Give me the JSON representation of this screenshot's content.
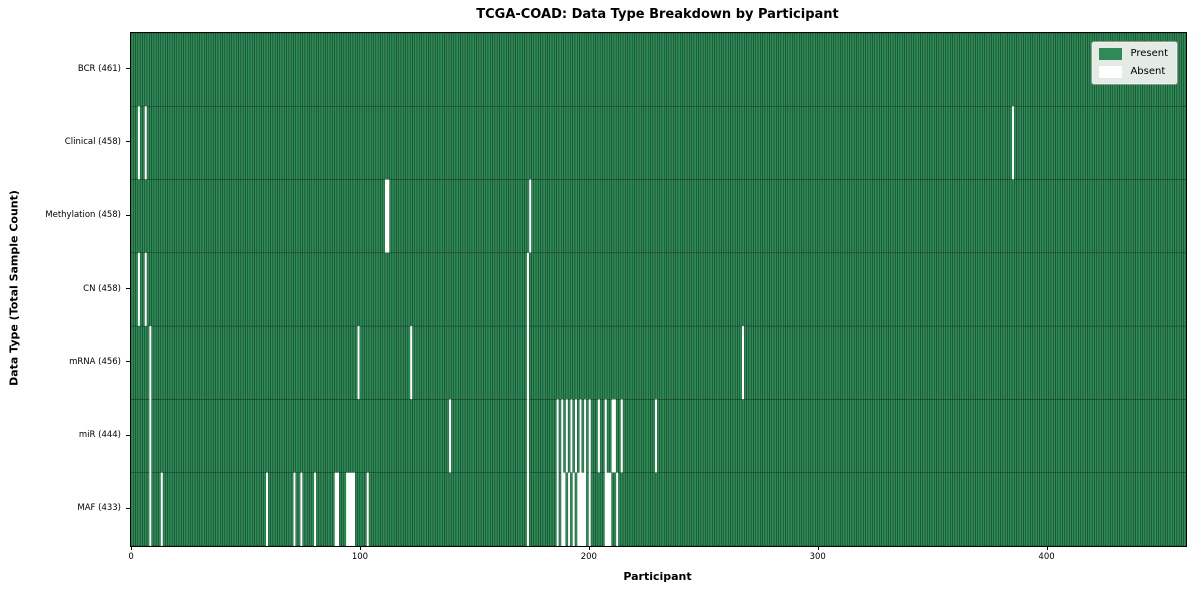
{
  "figure": {
    "title": "TCGA-COAD: Data Type Breakdown by Participant",
    "xlabel": "Participant",
    "ylabel": "Data Type (Total Sample Count)"
  },
  "legend": {
    "items": [
      {
        "label": "Present",
        "color": "#2e8b57"
      },
      {
        "label": "Absent",
        "color": "#ffffff"
      }
    ]
  },
  "chart_data": {
    "type": "heatmap",
    "title": "TCGA-COAD: Data Type Breakdown by Participant",
    "xlabel": "Participant",
    "ylabel": "Data Type (Total Sample Count)",
    "legend_entries": [
      "Present",
      "Absent"
    ],
    "legend_position": "upper right",
    "grid": false,
    "n_participants": 461,
    "xlim": [
      0,
      461
    ],
    "x_ticks": [
      0,
      100,
      200,
      300,
      400
    ],
    "present_color": "#2e8b57",
    "absent_color": "#ffffff",
    "edge_color": "#12331f",
    "rows": [
      {
        "label": "BCR (461)",
        "data_type": "BCR",
        "present_count": 461,
        "absent_count": 0,
        "absent_participants": []
      },
      {
        "label": "Clinical (458)",
        "data_type": "Clinical",
        "present_count": 458,
        "absent_count": 3,
        "absent_participants": [
          3,
          6,
          385
        ]
      },
      {
        "label": "Methylation (458)",
        "data_type": "Methylation",
        "present_count": 458,
        "absent_count": 3,
        "absent_participants": [
          111,
          112,
          174
        ]
      },
      {
        "label": "CN (458)",
        "data_type": "CN",
        "present_count": 458,
        "absent_count": 3,
        "absent_participants": [
          3,
          6,
          173
        ]
      },
      {
        "label": "mRNA (456)",
        "data_type": "mRNA",
        "present_count": 456,
        "absent_count": 5,
        "absent_participants": [
          8,
          99,
          122,
          173,
          267
        ]
      },
      {
        "label": "miR (444)",
        "data_type": "miR",
        "present_count": 444,
        "absent_count": 17,
        "absent_participants": [
          8,
          139,
          173,
          186,
          188,
          190,
          192,
          194,
          196,
          198,
          200,
          204,
          207,
          210,
          211,
          214,
          229
        ]
      },
      {
        "label": "MAF (433)",
        "data_type": "MAF",
        "present_count": 433,
        "absent_count": 28,
        "absent_participants": [
          8,
          13,
          59,
          71,
          74,
          80,
          89,
          90,
          94,
          95,
          96,
          97,
          103,
          173,
          186,
          188,
          189,
          191,
          193,
          195,
          196,
          197,
          198,
          200,
          207,
          208,
          209,
          212
        ]
      }
    ]
  }
}
